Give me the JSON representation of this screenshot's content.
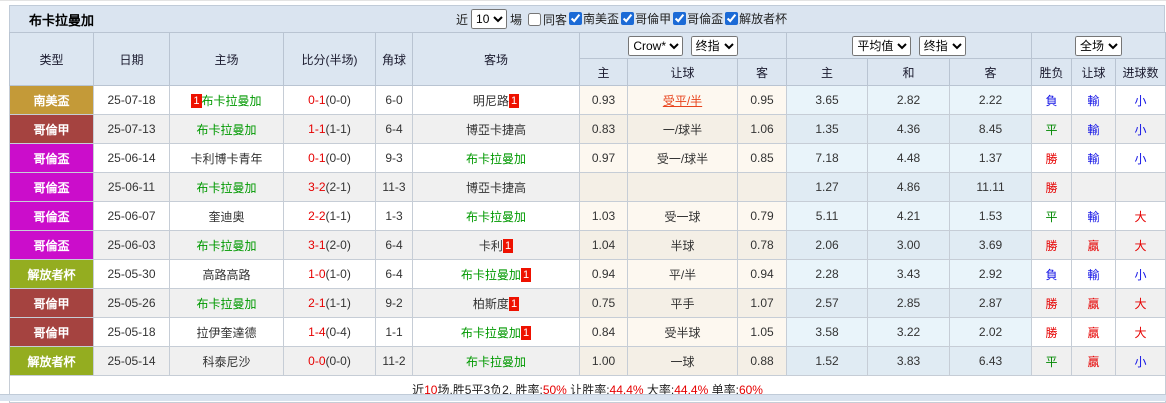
{
  "title": "布卡拉曼加",
  "filter_bar": {
    "recent_label": "近",
    "recent_value": "10",
    "matches_label": "場",
    "same_away_label": "同客",
    "leagues": [
      {
        "label": "南美盃",
        "checked": true
      },
      {
        "label": "哥倫甲",
        "checked": true
      },
      {
        "label": "哥倫盃",
        "checked": true
      },
      {
        "label": "解放者杯",
        "checked": true
      }
    ]
  },
  "selectors": {
    "odds_source": "Crow*",
    "odds_stage_1": "终指",
    "avg_source": "平均值",
    "odds_stage_2": "终指",
    "scope": "全场"
  },
  "table": {
    "headers": {
      "type": "类型",
      "date": "日期",
      "home": "主场",
      "score": "比分(半场)",
      "corner": "角球",
      "away": "客场",
      "handicap_home": "主",
      "handicap": "让球",
      "handicap_away": "客",
      "avg_home": "主",
      "avg_draw": "和",
      "avg_away": "客",
      "result": "胜负",
      "handicap_result": "让球",
      "goals": "进球数"
    },
    "rows": [
      {
        "type": "南美盃",
        "date": "25-07-18",
        "home": {
          "rank": "1",
          "name": "布卡拉曼加",
          "highlight": true
        },
        "score": {
          "ft": "0-1",
          "ht": "(0-0)"
        },
        "corner": "6-0",
        "away": {
          "name": "明尼路",
          "rank": "1"
        },
        "odds": {
          "home": "0.93",
          "handicap": "受平/半",
          "handicap_hot": true,
          "away": "0.95"
        },
        "avg": {
          "home": "3.65",
          "draw": "2.82",
          "away": "2.22"
        },
        "results": {
          "outcome": {
            "text": "負",
            "color": "blue"
          },
          "handicap": {
            "text": "輸",
            "color": "blue"
          },
          "goals": {
            "text": "小",
            "color": "blue"
          }
        }
      },
      {
        "type": "哥倫甲",
        "date": "25-07-13",
        "home": {
          "name": "布卡拉曼加",
          "highlight": true
        },
        "score": {
          "ft": "1-1",
          "ht": "(1-1)"
        },
        "corner": "6-4",
        "away": {
          "name": "博亞卡捷高"
        },
        "odds": {
          "home": "0.83",
          "handicap": "一/球半",
          "away": "1.06"
        },
        "avg": {
          "home": "1.35",
          "draw": "4.36",
          "away": "8.45"
        },
        "results": {
          "outcome": {
            "text": "平",
            "color": "green"
          },
          "handicap": {
            "text": "輸",
            "color": "blue"
          },
          "goals": {
            "text": "小",
            "color": "blue"
          }
        }
      },
      {
        "type": "哥倫盃",
        "date": "25-06-14",
        "home": {
          "name": "卡利博卡青年"
        },
        "score": {
          "ft": "0-1",
          "ht": "(0-0)"
        },
        "corner": "9-3",
        "away": {
          "name": "布卡拉曼加",
          "highlight": true
        },
        "odds": {
          "home": "0.97",
          "handicap": "受一/球半",
          "away": "0.85"
        },
        "avg": {
          "home": "7.18",
          "draw": "4.48",
          "away": "1.37"
        },
        "results": {
          "outcome": {
            "text": "勝",
            "color": "red"
          },
          "handicap": {
            "text": "輸",
            "color": "blue"
          },
          "goals": {
            "text": "小",
            "color": "blue"
          }
        }
      },
      {
        "type": "哥倫盃",
        "date": "25-06-11",
        "home": {
          "name": "布卡拉曼加",
          "highlight": true
        },
        "score": {
          "ft": "3-2",
          "ht": "(2-1)"
        },
        "corner": "11-3",
        "away": {
          "name": "博亞卡捷高"
        },
        "odds": {
          "home": "",
          "handicap": "",
          "away": ""
        },
        "avg": {
          "home": "1.27",
          "draw": "4.86",
          "away": "11.11"
        },
        "results": {
          "outcome": {
            "text": "勝",
            "color": "red"
          },
          "handicap": null,
          "goals": null
        }
      },
      {
        "type": "哥倫盃",
        "date": "25-06-07",
        "home": {
          "name": "奎迪奧"
        },
        "score": {
          "ft": "2-2",
          "ht": "(1-1)"
        },
        "corner": "1-3",
        "away": {
          "name": "布卡拉曼加",
          "highlight": true
        },
        "odds": {
          "home": "1.03",
          "handicap": "受一球",
          "away": "0.79"
        },
        "avg": {
          "home": "5.11",
          "draw": "4.21",
          "away": "1.53"
        },
        "results": {
          "outcome": {
            "text": "平",
            "color": "green"
          },
          "handicap": {
            "text": "輸",
            "color": "blue"
          },
          "goals": {
            "text": "大",
            "color": "red"
          }
        }
      },
      {
        "type": "哥倫盃",
        "date": "25-06-03",
        "home": {
          "name": "布卡拉曼加",
          "highlight": true
        },
        "score": {
          "ft": "3-1",
          "ht": "(2-0)"
        },
        "corner": "6-4",
        "away": {
          "name": "卡利",
          "rank": "1"
        },
        "odds": {
          "home": "1.04",
          "handicap": "半球",
          "away": "0.78"
        },
        "avg": {
          "home": "2.06",
          "draw": "3.00",
          "away": "3.69"
        },
        "results": {
          "outcome": {
            "text": "勝",
            "color": "red"
          },
          "handicap": {
            "text": "贏",
            "color": "red"
          },
          "goals": {
            "text": "大",
            "color": "red"
          }
        }
      },
      {
        "type": "解放者杯",
        "date": "25-05-30",
        "home": {
          "name": "高路高路"
        },
        "score": {
          "ft": "1-0",
          "ht": "(1-0)"
        },
        "corner": "6-4",
        "away": {
          "name": "布卡拉曼加",
          "highlight": true,
          "rank": "1"
        },
        "odds": {
          "home": "0.94",
          "handicap": "平/半",
          "away": "0.94"
        },
        "avg": {
          "home": "2.28",
          "draw": "3.43",
          "away": "2.92"
        },
        "results": {
          "outcome": {
            "text": "負",
            "color": "blue"
          },
          "handicap": {
            "text": "輸",
            "color": "blue"
          },
          "goals": {
            "text": "小",
            "color": "blue"
          }
        }
      },
      {
        "type": "哥倫甲",
        "date": "25-05-26",
        "home": {
          "name": "布卡拉曼加",
          "highlight": true
        },
        "score": {
          "ft": "2-1",
          "ht": "(1-1)"
        },
        "corner": "9-2",
        "away": {
          "name": "柏斯度",
          "rank": "1"
        },
        "odds": {
          "home": "0.75",
          "handicap": "平手",
          "away": "1.07"
        },
        "avg": {
          "home": "2.57",
          "draw": "2.85",
          "away": "2.87"
        },
        "results": {
          "outcome": {
            "text": "勝",
            "color": "red"
          },
          "handicap": {
            "text": "贏",
            "color": "red"
          },
          "goals": {
            "text": "大",
            "color": "red"
          }
        }
      },
      {
        "type": "哥倫甲",
        "date": "25-05-18",
        "home": {
          "name": "拉伊奎達德"
        },
        "score": {
          "ft": "1-4",
          "ht": "(0-4)"
        },
        "corner": "1-1",
        "away": {
          "name": "布卡拉曼加",
          "highlight": true,
          "rank": "1"
        },
        "odds": {
          "home": "0.84",
          "handicap": "受半球",
          "away": "1.05"
        },
        "avg": {
          "home": "3.58",
          "draw": "3.22",
          "away": "2.02"
        },
        "results": {
          "outcome": {
            "text": "勝",
            "color": "red"
          },
          "handicap": {
            "text": "贏",
            "color": "red"
          },
          "goals": {
            "text": "大",
            "color": "red"
          }
        }
      },
      {
        "type": "解放者杯",
        "date": "25-05-14",
        "home": {
          "name": "科泰尼沙"
        },
        "score": {
          "ft": "0-0",
          "ht": "(0-0)"
        },
        "corner": "11-2",
        "away": {
          "name": "布卡拉曼加",
          "highlight": true
        },
        "odds": {
          "home": "1.00",
          "handicap": "一球",
          "away": "0.88"
        },
        "avg": {
          "home": "1.52",
          "draw": "3.83",
          "away": "6.43"
        },
        "results": {
          "outcome": {
            "text": "平",
            "color": "green"
          },
          "handicap": {
            "text": "贏",
            "color": "red"
          },
          "goals": {
            "text": "小",
            "color": "blue"
          }
        }
      }
    ]
  },
  "league_colors": {
    "南美盃": "#c49a38",
    "哥倫甲": "#a54340",
    "哥倫盃": "#cb0dcb",
    "解放者杯": "#94ad20"
  },
  "result_colors": {
    "red": "#e60000",
    "blue": "#1414e6",
    "green": "#008800"
  },
  "summary": {
    "segments": [
      {
        "text": "近",
        "red": false
      },
      {
        "text": "10",
        "red": true
      },
      {
        "text": "场,胜5平3负2, 胜率:",
        "red": false
      },
      {
        "text": "50%",
        "red": true
      },
      {
        "text": " 让胜率:",
        "red": false
      },
      {
        "text": "44.4%",
        "red": true
      },
      {
        "text": " 大率:",
        "red": false
      },
      {
        "text": "44.4%",
        "red": true
      },
      {
        "text": " 单率:",
        "red": false
      },
      {
        "text": "60%",
        "red": true
      }
    ]
  }
}
